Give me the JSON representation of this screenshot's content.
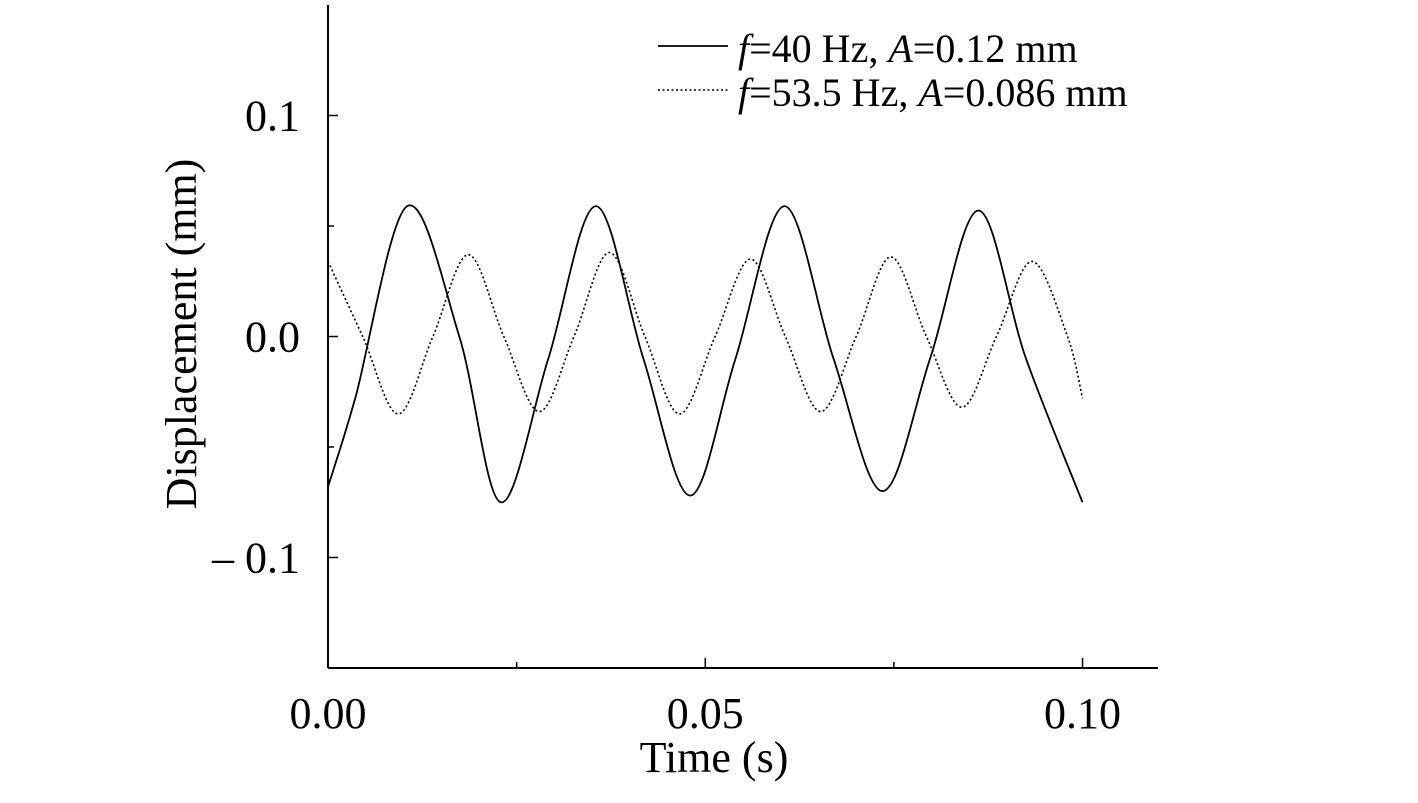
{
  "chart_data": {
    "type": "line",
    "xlabel": "Time (s)",
    "ylabel": "Displacement (mm)",
    "xlim": [
      0.0,
      0.11
    ],
    "ylim": [
      -0.15,
      0.15
    ],
    "x_ticks": [
      {
        "value": 0.0,
        "label": "0.00"
      },
      {
        "value": 0.05,
        "label": "0.05"
      },
      {
        "value": 0.1,
        "label": "0.10"
      }
    ],
    "x_minor_ticks": [
      0.025,
      0.075
    ],
    "y_ticks": [
      {
        "value": 0.1,
        "label": "0.1"
      },
      {
        "value": 0.0,
        "label": "0.0"
      },
      {
        "value": -0.1,
        "label": "– 0.1"
      }
    ],
    "y_minor_ticks": [
      0.05,
      -0.05
    ],
    "grid": false,
    "legend_position": "top-right",
    "series": [
      {
        "name": "f=40 Hz, A=0.12 mm",
        "legend_parts": [
          {
            "text": "f",
            "italic": true
          },
          {
            "text": "=40 Hz, ",
            "italic": false
          },
          {
            "text": "A",
            "italic": true
          },
          {
            "text": "=0.12 mm",
            "italic": false
          }
        ],
        "style": "solid",
        "color": "#000000",
        "x": [
          0.0,
          0.0036,
          0.0105,
          0.0174,
          0.0229,
          0.0292,
          0.0355,
          0.0418,
          0.048,
          0.054,
          0.0605,
          0.067,
          0.0735,
          0.0798,
          0.0862,
          0.0925,
          0.1
        ],
        "y": [
          -0.068,
          -0.028,
          0.059,
          0.0,
          -0.075,
          -0.01,
          0.059,
          -0.01,
          -0.072,
          -0.01,
          0.059,
          -0.01,
          -0.07,
          -0.01,
          0.057,
          -0.01,
          -0.075
        ]
      },
      {
        "name": "f=53.5 Hz, A=0.086 mm",
        "legend_parts": [
          {
            "text": "f",
            "italic": true
          },
          {
            "text": "=53.5 Hz, ",
            "italic": false
          },
          {
            "text": "A",
            "italic": true
          },
          {
            "text": "=0.086 mm",
            "italic": false
          }
        ],
        "style": "dotted",
        "color": "#000000",
        "x": [
          0.0,
          0.0046,
          0.0093,
          0.0139,
          0.0186,
          0.0233,
          0.028,
          0.0326,
          0.0373,
          0.042,
          0.0466,
          0.0513,
          0.056,
          0.0606,
          0.0653,
          0.07,
          0.0746,
          0.0793,
          0.084,
          0.0886,
          0.0933,
          0.098,
          0.1
        ],
        "y": [
          0.034,
          0.0,
          -0.035,
          0.0,
          0.037,
          0.0,
          -0.034,
          0.0,
          0.038,
          0.0,
          -0.035,
          0.0,
          0.035,
          0.0,
          -0.034,
          0.0,
          0.036,
          0.0,
          -0.032,
          0.0,
          0.034,
          0.0,
          -0.028
        ]
      }
    ]
  }
}
